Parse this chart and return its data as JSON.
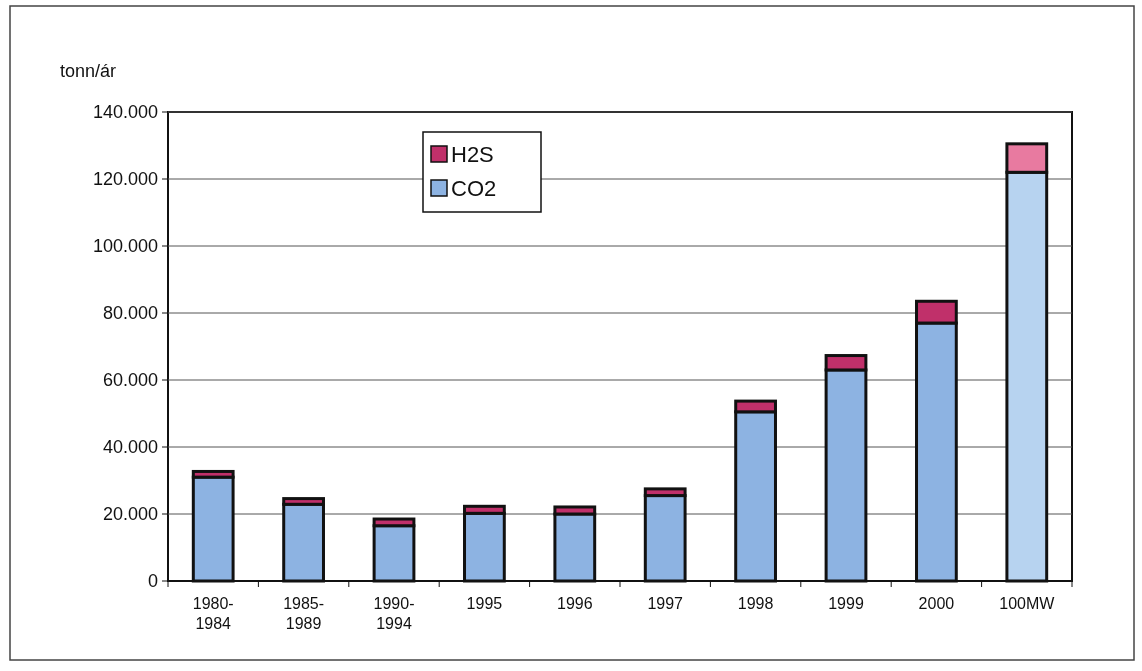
{
  "chart_data": {
    "type": "bar",
    "stacked": true,
    "ylabel": "tonn/ár",
    "categories": [
      "1980-\n1984",
      "1985-\n1989",
      "1990-\n1994",
      "1995",
      "1996",
      "1997",
      "1998",
      "1999",
      "2000",
      "100MW"
    ],
    "series": [
      {
        "name": "CO2",
        "color": "#8db3e2",
        "colors": [
          "#8db3e2",
          "#8db3e2",
          "#8db3e2",
          "#8db3e2",
          "#8db3e2",
          "#8db3e2",
          "#8db3e2",
          "#8db3e2",
          "#8db3e2",
          "#b7d3f0"
        ],
        "values": [
          31000,
          22900,
          16500,
          20200,
          20000,
          25500,
          50500,
          63000,
          77000,
          122000
        ]
      },
      {
        "name": "H2S",
        "color": "#c0306a",
        "colors": [
          "#c0306a",
          "#c0306a",
          "#c0306a",
          "#c0306a",
          "#c0306a",
          "#c0306a",
          "#c0306a",
          "#c0306a",
          "#c0306a",
          "#e87aa0"
        ],
        "values": [
          1700,
          1700,
          2000,
          2100,
          2100,
          2000,
          3200,
          4300,
          6500,
          8500
        ]
      }
    ],
    "ylim": [
      0,
      140000
    ],
    "yticks": [
      {
        "value": 0,
        "label": "0"
      },
      {
        "value": 20000,
        "label": "20.000"
      },
      {
        "value": 40000,
        "label": "40.000"
      },
      {
        "value": 60000,
        "label": "60.000"
      },
      {
        "value": 80000,
        "label": "80.000"
      },
      {
        "value": 100000,
        "label": "100.000"
      },
      {
        "value": 120000,
        "label": "120.000"
      },
      {
        "value": 140000,
        "label": "140.000"
      }
    ],
    "grid": "y",
    "legend": "top left"
  }
}
